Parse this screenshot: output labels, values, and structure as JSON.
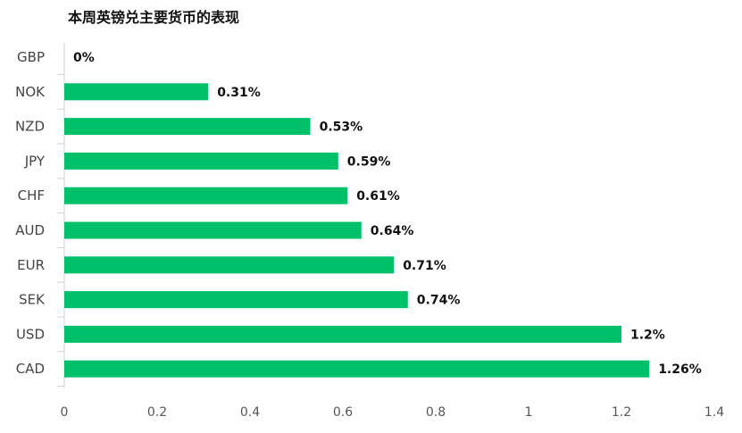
{
  "chart_data": {
    "type": "bar",
    "orientation": "horizontal",
    "title": "本周英镑兑主要货币的表现",
    "categories": [
      "GBP",
      "NOK",
      "NZD",
      "JPY",
      "CHF",
      "AUD",
      "EUR",
      "SEK",
      "USD",
      "CAD"
    ],
    "values": [
      0,
      0.31,
      0.53,
      0.59,
      0.61,
      0.64,
      0.71,
      0.74,
      1.2,
      1.26
    ],
    "value_labels": [
      "0%",
      "0.31%",
      "0.53%",
      "0.59%",
      "0.61%",
      "0.64%",
      "0.71%",
      "0.74%",
      "1.2%",
      "1.26%"
    ],
    "xlim": [
      0,
      1.4
    ],
    "x_ticks": [
      0,
      0.2,
      0.4,
      0.6,
      0.8,
      1,
      1.2,
      1.4
    ],
    "x_tick_labels": [
      "0",
      "0.2",
      "0.4",
      "0.6",
      "0.8",
      "1",
      "1.2",
      "1.4"
    ],
    "xlabel": "",
    "ylabel": "",
    "grid": false,
    "legend": "none",
    "bar_color": "#00c169",
    "axis_color": "#c9d3e0"
  }
}
